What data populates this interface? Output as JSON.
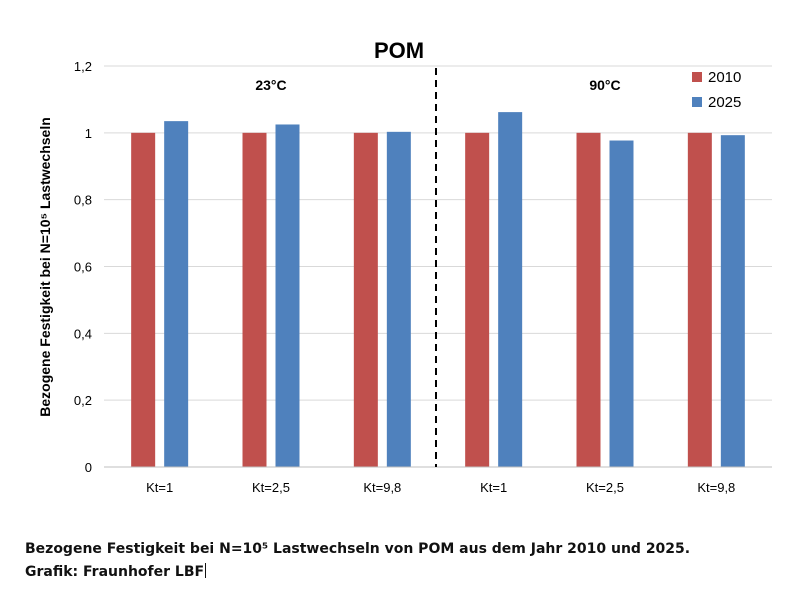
{
  "chart_data": {
    "type": "bar",
    "title": "POM",
    "ylabel": "Bezogene Festigkeit bei N=10⁵ Lastwechseln",
    "ylim": [
      0,
      1.2
    ],
    "yticks": [
      "0",
      "0,2",
      "0,4",
      "0,6",
      "0,8",
      "1",
      "1,2"
    ],
    "ytick_values": [
      0,
      0.2,
      0.4,
      0.6,
      0.8,
      1.0,
      1.2
    ],
    "grid": true,
    "legend_position": "top-right",
    "groups": [
      {
        "label": "23°C",
        "categories": [
          "Kt=1",
          "Kt=2,5",
          "Kt=9,8"
        ]
      },
      {
        "label": "90°C",
        "categories": [
          "Kt=1",
          "Kt=2,5",
          "Kt=9,8"
        ]
      }
    ],
    "categories": [
      "Kt=1",
      "Kt=2,5",
      "Kt=9,8",
      "Kt=1",
      "Kt=2,5",
      "Kt=9,8"
    ],
    "series": [
      {
        "name": "2010",
        "color": "#c0504d",
        "values": [
          1.0,
          1.0,
          1.0,
          1.0,
          1.0,
          1.0
        ]
      },
      {
        "name": "2025",
        "color": "#4f81bd",
        "values": [
          1.035,
          1.025,
          1.003,
          1.062,
          0.977,
          0.993
        ]
      }
    ]
  },
  "caption": {
    "line1": "Bezogene Festigkeit bei N=10⁵ Lastwechseln von POM aus dem Jahr 2010 und 2025.",
    "line2": "Grafik: Fraunhofer LBF"
  }
}
